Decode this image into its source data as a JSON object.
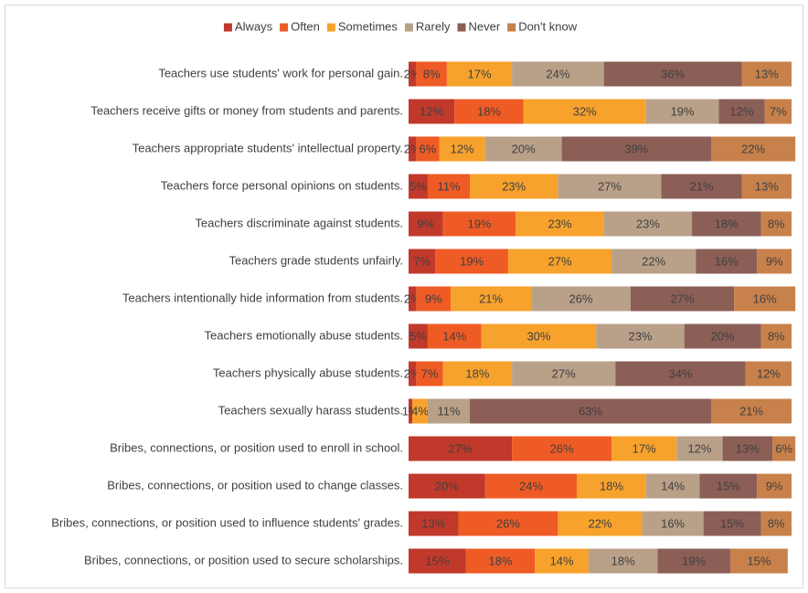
{
  "chart_data": {
    "type": "stacked_bar_horizontal",
    "categories": [
      "Teachers use students' work for personal gain.",
      "Teachers receive gifts or money from students and parents.",
      "Teachers appropriate students' intellectual property.",
      "Teachers force personal opinions on students.",
      "Teachers discriminate against students.",
      "Teachers grade students unfairly.",
      "Teachers intentionally hide information from students.",
      "Teachers emotionally abuse students.",
      "Teachers physically abuse students.",
      "Teachers sexually harass students.",
      "Bribes, connections, or position used to enroll in school.",
      "Bribes, connections, or position used to change classes.",
      "Bribes, connections, or position used to influence students' grades.",
      "Bribes, connections, or position used to secure scholarships."
    ],
    "series": [
      {
        "name": "Always",
        "color": "#c0392b",
        "values": [
          2,
          12,
          2,
          5,
          9,
          7,
          2,
          5,
          2,
          1,
          27,
          20,
          13,
          15
        ],
        "value_labels": [
          "2%",
          "12%",
          "2%",
          "5%",
          "9%",
          "7%",
          "2%",
          "5%",
          "2%",
          "1%",
          "27%",
          "20%",
          "13%",
          "15%"
        ]
      },
      {
        "name": "Often",
        "color": "#ef5b25",
        "values": [
          8,
          18,
          6,
          11,
          19,
          19,
          9,
          14,
          7,
          null,
          26,
          24,
          26,
          18
        ],
        "value_labels": [
          "8%",
          "18%",
          "6%",
          "11%",
          "19%",
          "19%",
          "9%",
          "14%",
          "7%",
          null,
          "26%",
          "24%",
          "26%",
          "18%"
        ]
      },
      {
        "name": "Sometimes",
        "color": "#f7a22c",
        "values": [
          17,
          32,
          12,
          23,
          23,
          27,
          21,
          30,
          18,
          4,
          17,
          18,
          22,
          14
        ],
        "value_labels": [
          "17%",
          "32%",
          "12%",
          "23%",
          "23%",
          "27%",
          "21%",
          "30%",
          "18%",
          "4%",
          "17%",
          "18%",
          "22%",
          "14%"
        ]
      },
      {
        "name": "Rarely",
        "color": "#b9a088",
        "values": [
          24,
          19,
          20,
          27,
          23,
          22,
          26,
          23,
          27,
          11,
          12,
          14,
          16,
          18
        ],
        "value_labels": [
          "24%",
          "19%",
          "20%",
          "27%",
          "23%",
          "22%",
          "26%",
          "23%",
          "27%",
          "11%",
          "12%",
          "14%",
          "16%",
          "18%"
        ]
      },
      {
        "name": "Never",
        "color": "#8b5e56",
        "values": [
          36,
          12,
          39,
          21,
          18,
          16,
          27,
          20,
          34,
          63,
          13,
          15,
          15,
          19
        ],
        "value_labels": [
          "36%",
          "12%",
          "39%",
          "21%",
          "18%",
          "16%",
          "27%",
          "20%",
          "34%",
          "63%",
          "13%",
          "15%",
          "15%",
          "19%"
        ]
      },
      {
        "name": "Don't know",
        "color": "#c8814b",
        "values": [
          13,
          7,
          22,
          13,
          8,
          9,
          16,
          8,
          12,
          21,
          6,
          9,
          8,
          15
        ],
        "value_labels": [
          "13%",
          "7%",
          "22%",
          "13%",
          "8%",
          "9%",
          "16%",
          "8%",
          "12%",
          "21%",
          "6%",
          "9%",
          "8%",
          "15%"
        ]
      }
    ],
    "xlim": [
      0,
      100
    ],
    "legend": "top"
  }
}
